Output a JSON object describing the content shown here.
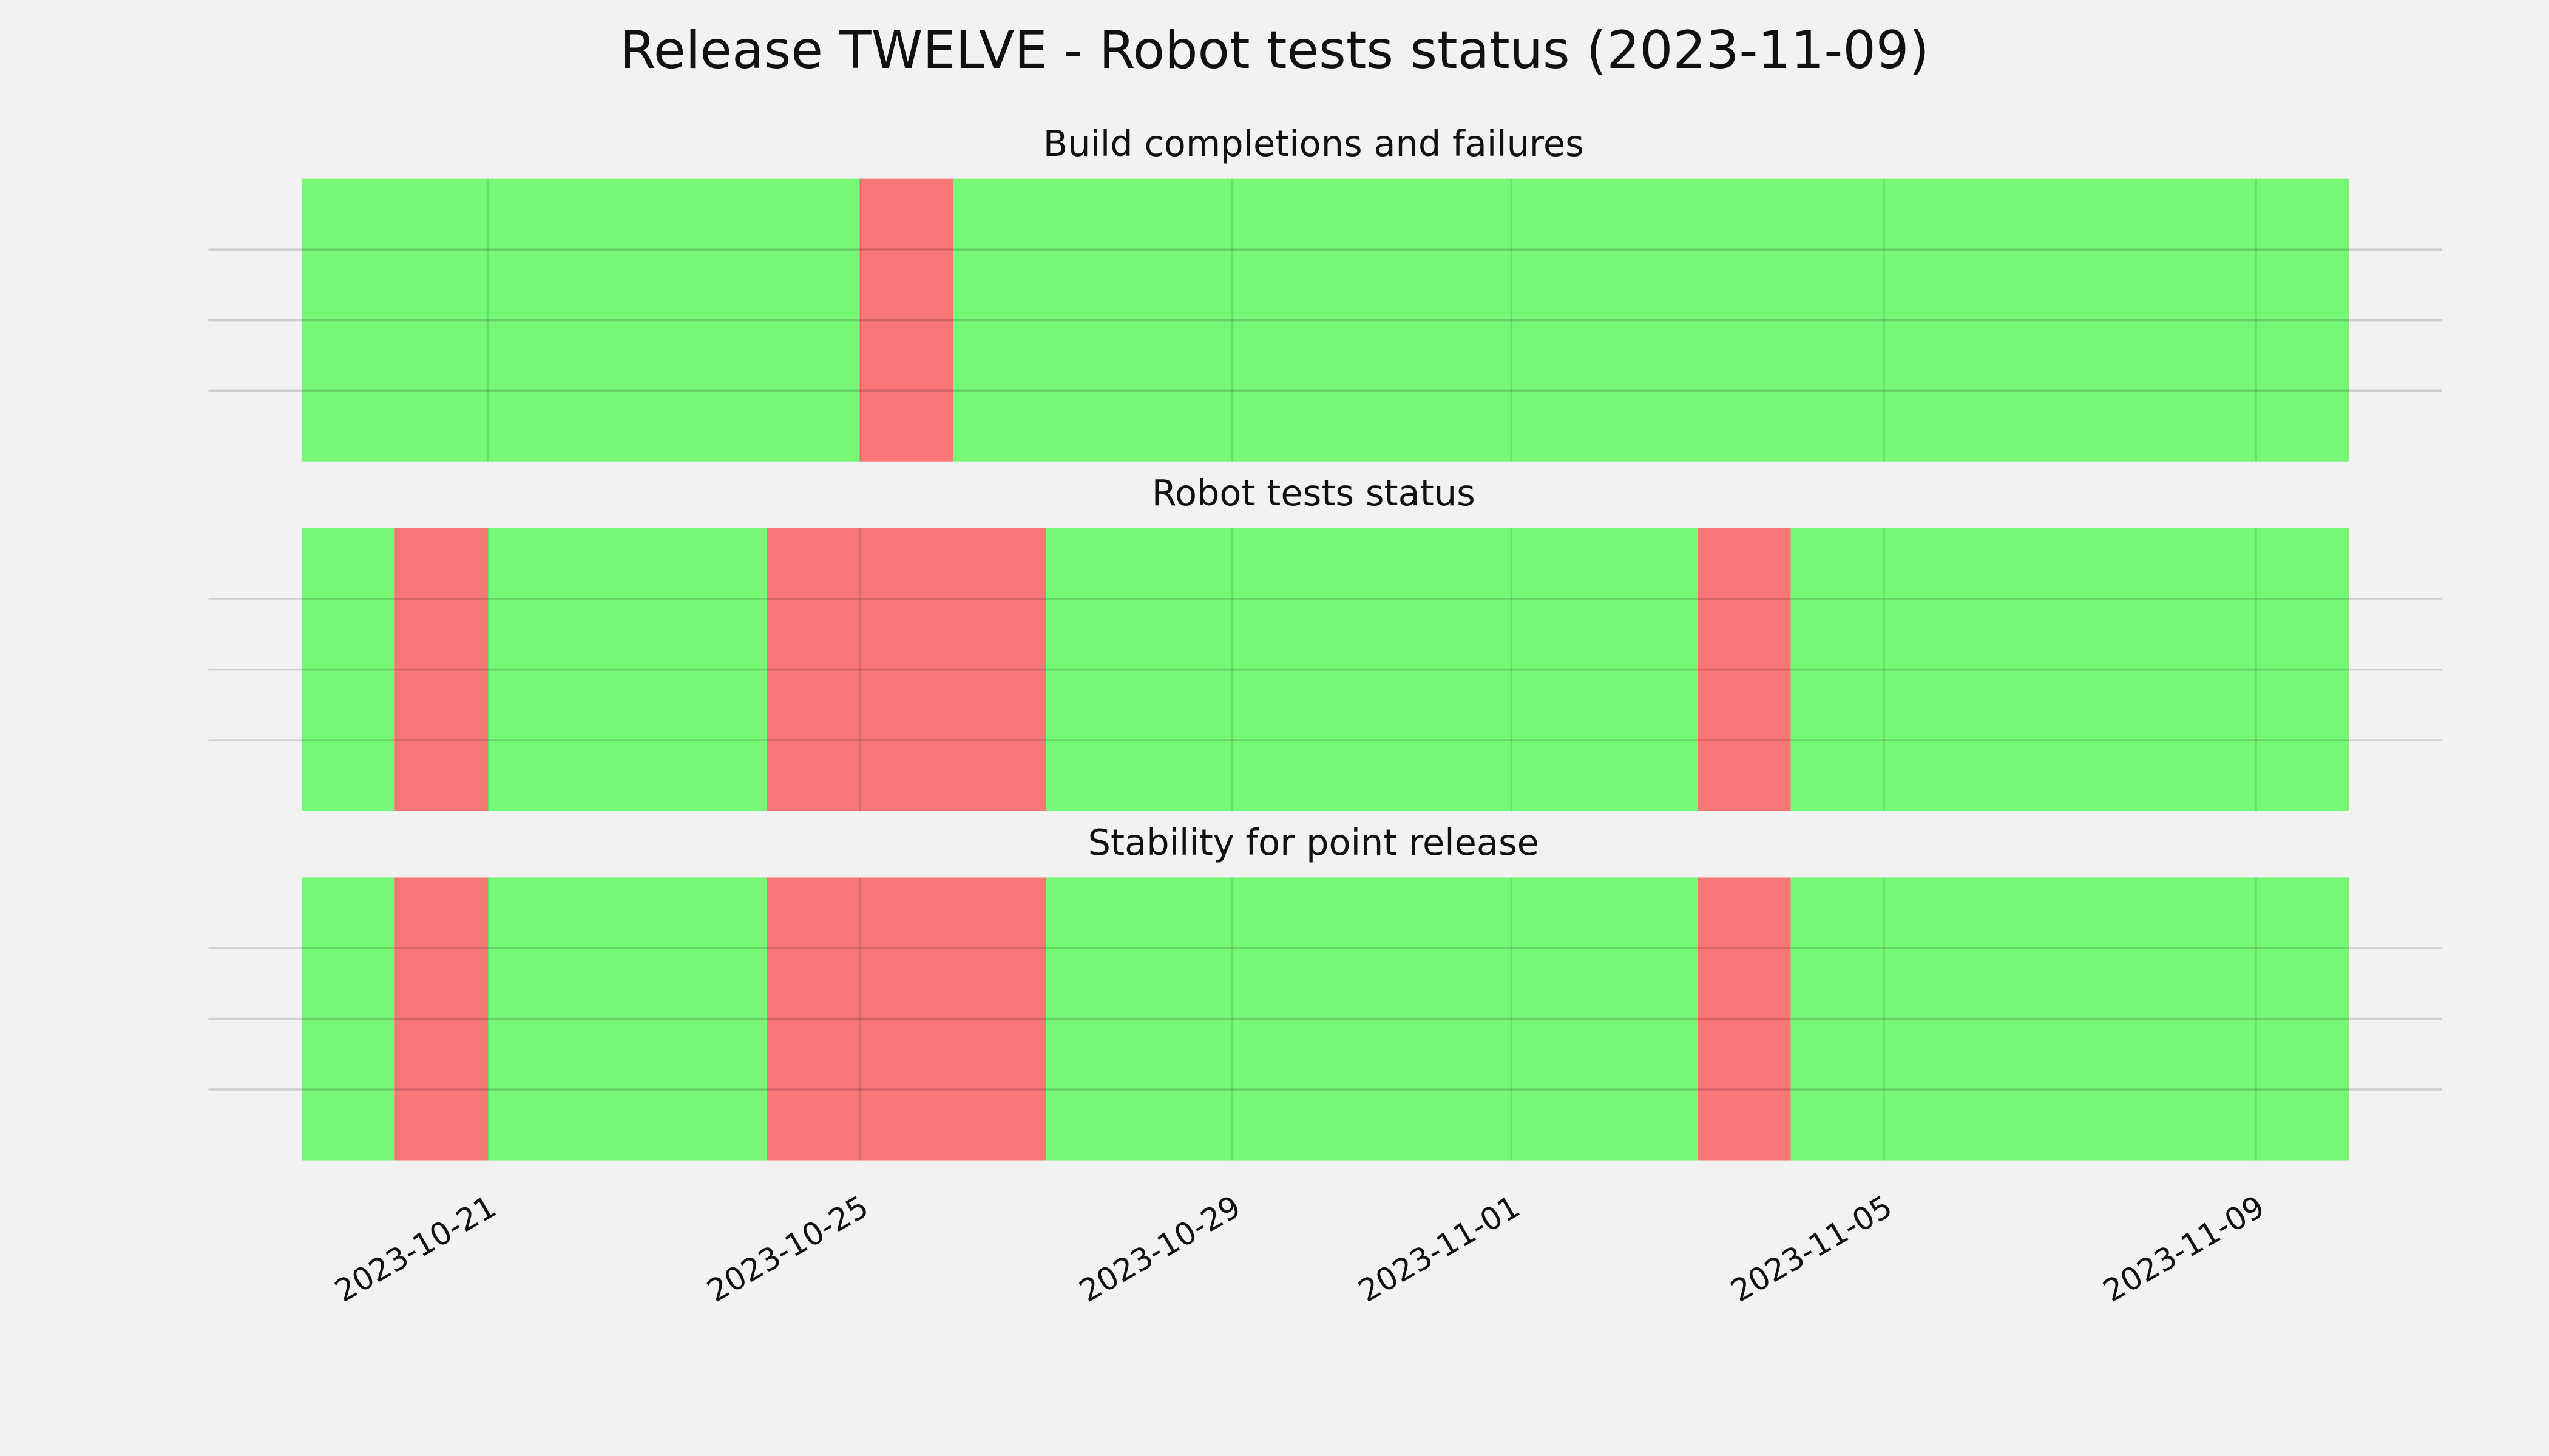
{
  "title": "Release TWELVE - Robot tests status (2023-11-09)",
  "chart_data": [
    {
      "type": "span",
      "title": "Build completions and failures",
      "segments": [
        {
          "start": "2023-10-19",
          "end": "2023-10-25",
          "color": "#76f776"
        },
        {
          "start": "2023-10-25",
          "end": "2023-10-26",
          "color": "#f77676"
        },
        {
          "start": "2023-10-26",
          "end": "2023-11-10",
          "color": "#76f776"
        }
      ],
      "xlim": [
        "2023-10-18",
        "2023-11-11"
      ],
      "xticks": [
        "2023-10-21",
        "2023-10-25",
        "2023-10-29",
        "2023-11-01",
        "2023-11-05",
        "2023-11-09"
      ],
      "ylim": [
        0,
        4
      ],
      "yticks": [
        1,
        2,
        3
      ],
      "grid": true
    },
    {
      "type": "span",
      "title": "Robot tests status",
      "segments": [
        {
          "start": "2023-10-19",
          "end": "2023-10-20",
          "color": "#76f776"
        },
        {
          "start": "2023-10-20",
          "end": "2023-10-21",
          "color": "#f77676"
        },
        {
          "start": "2023-10-21",
          "end": "2023-10-24",
          "color": "#76f776"
        },
        {
          "start": "2023-10-24",
          "end": "2023-10-27",
          "color": "#f77676"
        },
        {
          "start": "2023-10-27",
          "end": "2023-11-03",
          "color": "#76f776"
        },
        {
          "start": "2023-11-03",
          "end": "2023-11-04",
          "color": "#f77676"
        },
        {
          "start": "2023-11-04",
          "end": "2023-11-10",
          "color": "#76f776"
        }
      ],
      "xlim": [
        "2023-10-18",
        "2023-11-11"
      ],
      "xticks": [
        "2023-10-21",
        "2023-10-25",
        "2023-10-29",
        "2023-11-01",
        "2023-11-05",
        "2023-11-09"
      ],
      "ylim": [
        0,
        4
      ],
      "yticks": [
        1,
        2,
        3
      ],
      "grid": true
    },
    {
      "type": "span",
      "title": "Stability for point release",
      "segments": [
        {
          "start": "2023-10-19",
          "end": "2023-10-20",
          "color": "#76f776"
        },
        {
          "start": "2023-10-20",
          "end": "2023-10-21",
          "color": "#f77676"
        },
        {
          "start": "2023-10-21",
          "end": "2023-10-24",
          "color": "#76f776"
        },
        {
          "start": "2023-10-24",
          "end": "2023-10-27",
          "color": "#f77676"
        },
        {
          "start": "2023-10-27",
          "end": "2023-11-03",
          "color": "#76f776"
        },
        {
          "start": "2023-11-03",
          "end": "2023-11-04",
          "color": "#f77676"
        },
        {
          "start": "2023-11-04",
          "end": "2023-11-10",
          "color": "#76f776"
        }
      ],
      "xlim": [
        "2023-10-18",
        "2023-11-11"
      ],
      "xticks": [
        "2023-10-21",
        "2023-10-25",
        "2023-10-29",
        "2023-11-01",
        "2023-11-05",
        "2023-11-09"
      ],
      "ylim": [
        0,
        4
      ],
      "yticks": [
        1,
        2,
        3
      ],
      "grid": true,
      "show_xtick_labels": true
    }
  ]
}
